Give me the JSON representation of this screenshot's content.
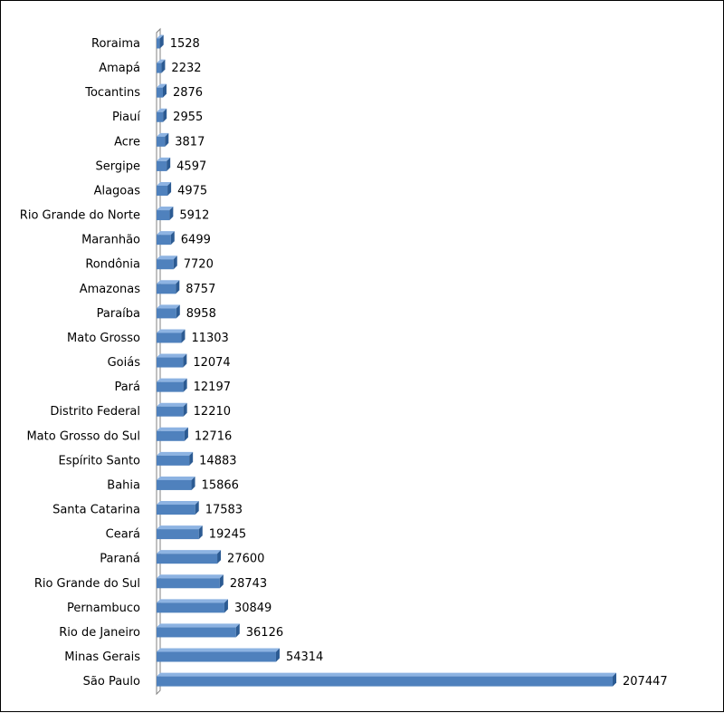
{
  "chart_data": {
    "type": "bar",
    "orientation": "horizontal",
    "style": "3d",
    "bar_color": "#4f81bd",
    "bar_side_color": "#2c5b93",
    "bar_top_color": "#8db3e2",
    "grid": false,
    "legend": "none",
    "title": "",
    "xlabel": "",
    "ylabel": "",
    "xlim": [
      0,
      207447
    ],
    "categories": [
      "Roraima",
      "Amapá",
      "Tocantins",
      "Piauí",
      "Acre",
      "Sergipe",
      "Alagoas",
      "Rio Grande do Norte",
      "Maranhão",
      "Rondônia",
      "Amazonas",
      "Paraíba",
      "Mato Grosso",
      "Goiás",
      "Pará",
      "Distrito Federal",
      "Mato Grosso do Sul",
      "Espírito Santo",
      "Bahia",
      "Santa Catarina",
      "Ceará",
      "Paraná",
      "Rio Grande do Sul",
      "Pernambuco",
      "Rio de Janeiro",
      "Minas Gerais",
      "São Paulo"
    ],
    "values": [
      1528,
      2232,
      2876,
      2955,
      3817,
      4597,
      4975,
      5912,
      6499,
      7720,
      8757,
      8958,
      11303,
      12074,
      12197,
      12210,
      12716,
      14883,
      15866,
      17583,
      19245,
      27600,
      28743,
      30849,
      36126,
      54314,
      207447
    ]
  }
}
